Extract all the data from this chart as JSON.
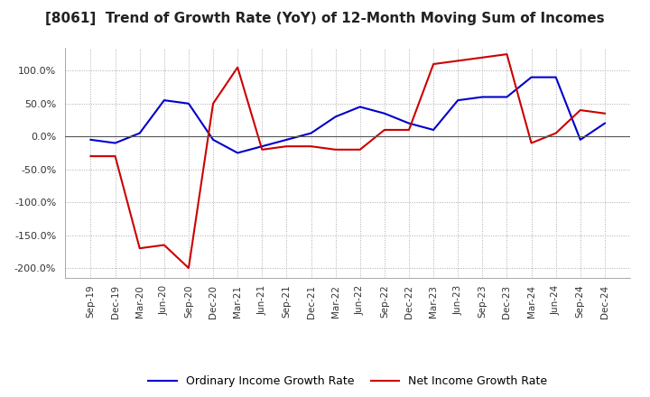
{
  "title": "[8061]  Trend of Growth Rate (YoY) of 12-Month Moving Sum of Incomes",
  "title_fontsize": 11,
  "background_color": "#ffffff",
  "plot_background_color": "#ffffff",
  "grid_color": "#aaaaaa",
  "grid_style": "dotted",
  "ylim": [
    -215,
    135
  ],
  "yticks": [
    100,
    50,
    0,
    -50,
    -100,
    -150,
    -200
  ],
  "legend_ordinary": "Ordinary Income Growth Rate",
  "legend_net": "Net Income Growth Rate",
  "ordinary_color": "#0000cc",
  "net_color": "#cc0000",
  "x_labels": [
    "Sep-19",
    "Dec-19",
    "Mar-20",
    "Jun-20",
    "Sep-20",
    "Dec-20",
    "Mar-21",
    "Jun-21",
    "Sep-21",
    "Dec-21",
    "Mar-22",
    "Jun-22",
    "Sep-22",
    "Dec-22",
    "Mar-23",
    "Jun-23",
    "Sep-23",
    "Dec-23",
    "Mar-24",
    "Jun-24",
    "Sep-24",
    "Dec-24"
  ],
  "ordinary_values": [
    -5,
    -10,
    5,
    55,
    50,
    -5,
    -25,
    -15,
    -5,
    5,
    30,
    45,
    35,
    20,
    10,
    55,
    60,
    60,
    90,
    90,
    -5,
    20
  ],
  "net_values": [
    -30,
    -30,
    -170,
    -165,
    -200,
    50,
    105,
    -20,
    -15,
    -15,
    -20,
    -20,
    10,
    10,
    110,
    115,
    120,
    125,
    -10,
    5,
    40,
    35
  ]
}
